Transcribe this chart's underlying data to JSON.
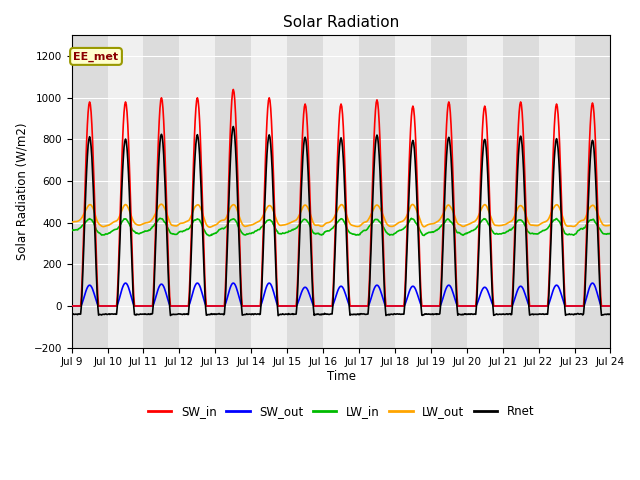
{
  "title": "Solar Radiation",
  "ylabel": "Solar Radiation (W/m2)",
  "xlabel": "Time",
  "xlim_days": [
    9,
    24
  ],
  "ylim": [
    -200,
    1300
  ],
  "yticks": [
    -200,
    0,
    200,
    400,
    600,
    800,
    1000,
    1200
  ],
  "xtick_labels": [
    "Jul 9",
    "Jul 10",
    "Jul 11",
    "Jul 12",
    "Jul 13",
    "Jul 14",
    "Jul 15",
    "Jul 16",
    "Jul 17",
    "Jul 18",
    "Jul 19",
    "Jul 20",
    "Jul 21",
    "Jul 22",
    "Jul 23",
    "Jul 24"
  ],
  "annotation_text": "EE_met",
  "annotation_color": "#8B0000",
  "annotation_bg": "#FFFFCC",
  "annotation_border": "#999900",
  "sw_in_color": "#FF0000",
  "sw_out_color": "#0000FF",
  "lw_in_color": "#00BB00",
  "lw_out_color": "#FFA500",
  "rnet_color": "#000000",
  "line_width": 1.2,
  "background_color": "#FFFFFF",
  "plot_bg_color_light": "#F0F0F0",
  "plot_bg_color_dark": "#DCDCDC",
  "grid_color": "#FFFFFF",
  "legend_labels": [
    "SW_in",
    "SW_out",
    "LW_in",
    "LW_out",
    "Rnet"
  ],
  "figsize": [
    6.4,
    4.8
  ],
  "dpi": 100
}
